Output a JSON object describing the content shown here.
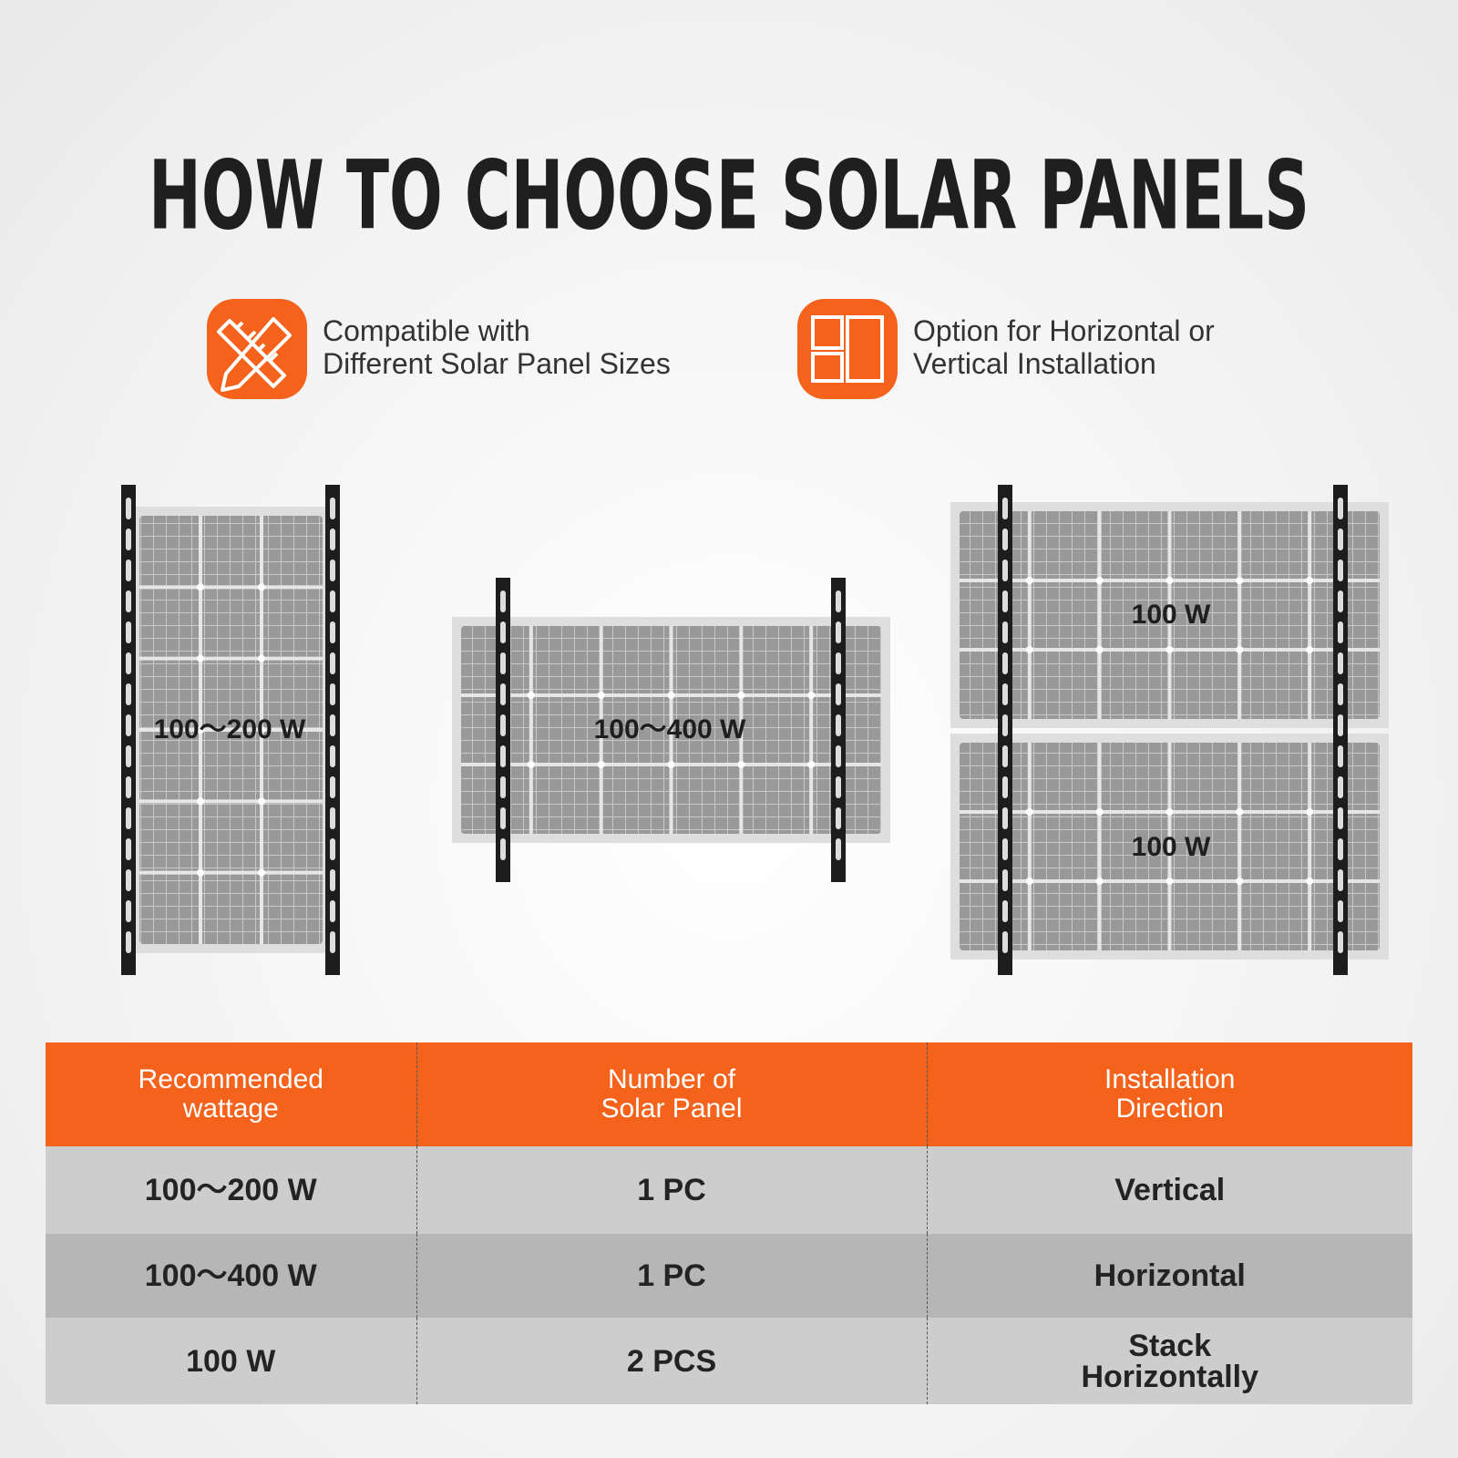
{
  "header": {
    "title": "HOW TO CHOOSE SOLAR PANELS"
  },
  "features": [
    {
      "lines": [
        "Compatible with",
        "Different Solar Panel Sizes"
      ]
    },
    {
      "lines": [
        "Option for Horizontal or",
        "Vertical Installation"
      ]
    }
  ],
  "panels": [
    {
      "labels": [
        "100～200 W"
      ]
    },
    {
      "labels": [
        "100～400 W"
      ]
    },
    {
      "labels": [
        "100 W",
        "100 W"
      ]
    }
  ],
  "table": {
    "header": [
      [
        "Recommended",
        "wattage"
      ],
      [
        "Number of",
        "Solar Panel"
      ],
      [
        "Installation",
        "Direction"
      ]
    ],
    "rows": [
      [
        [
          "100～200 W"
        ],
        [
          "1 PC"
        ],
        [
          "Vertical"
        ]
      ],
      [
        [
          "100～400 W"
        ],
        [
          "1 PC"
        ],
        [
          "Horizontal"
        ]
      ],
      [
        [
          "100 W"
        ],
        [
          "2 PCS"
        ],
        [
          "Stack",
          "Horizontally"
        ]
      ]
    ]
  }
}
